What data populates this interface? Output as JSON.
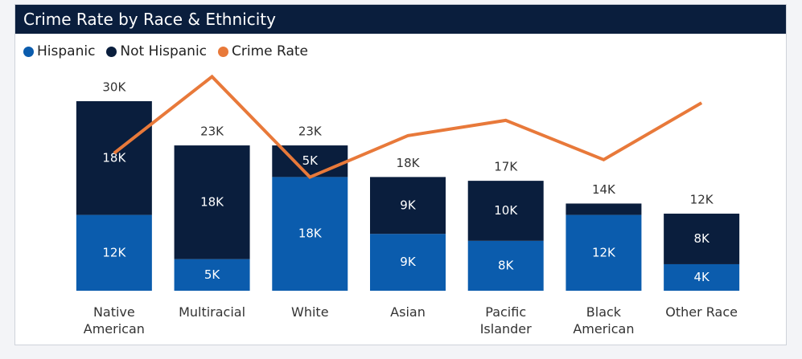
{
  "chart_data": {
    "type": "stacked-bar-line",
    "title": "Crime Rate by Race & Ethnicity",
    "categories": [
      "Native American",
      "Multiracial",
      "White",
      "Asian",
      "Pacific Islander",
      "Black American",
      "Other Race"
    ],
    "total_labels": [
      "30K",
      "23K",
      "23K",
      "18K",
      "17K",
      "14K",
      "12K"
    ],
    "ylim": [
      0,
      30000
    ],
    "y2lim": [
      0,
      100
    ],
    "series": [
      {
        "name": "Hispanic",
        "color": "#0b5cad",
        "values": [
          12000,
          5000,
          18000,
          9000,
          7900,
          12000,
          4200
        ],
        "value_labels": [
          "12K",
          "5K",
          "18K",
          "9K",
          "8K",
          "12K",
          "4K"
        ]
      },
      {
        "name": "Not Hispanic",
        "color": "#0a1e3d",
        "values": [
          18000,
          18000,
          5000,
          9000,
          9500,
          1800,
          8000
        ],
        "value_labels": [
          "18K",
          "18K",
          "5K",
          "9K",
          "10K",
          null,
          "8K"
        ]
      },
      {
        "name": "Crime Rate",
        "color": "#e8793a",
        "axis": "y2",
        "values": [
          63,
          98,
          52,
          71,
          78,
          60,
          86
        ]
      }
    ]
  }
}
